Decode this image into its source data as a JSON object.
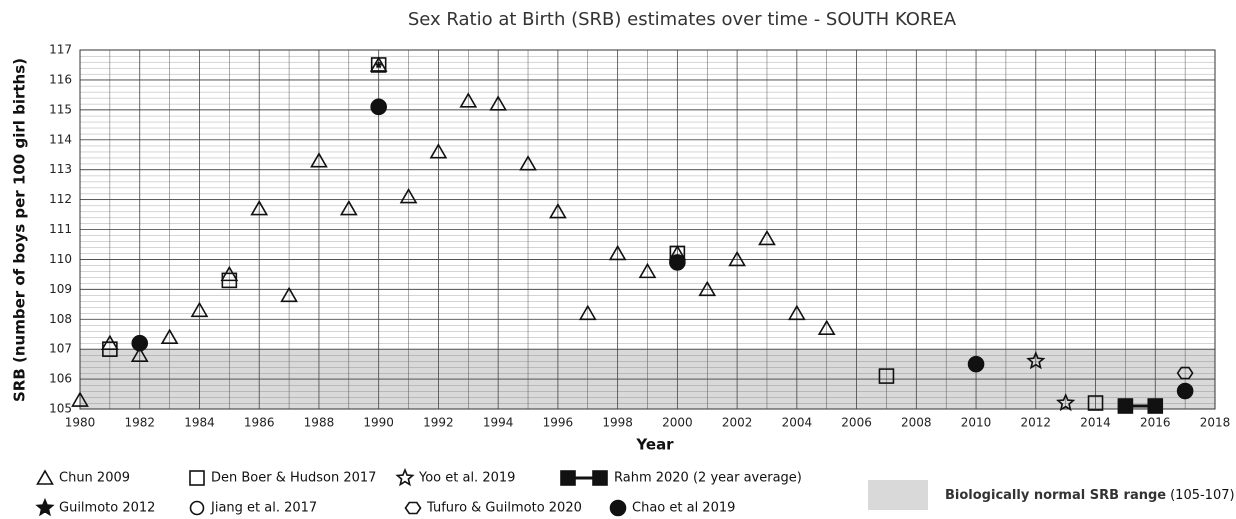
{
  "chart_data": {
    "type": "scatter",
    "title": "Sex Ratio at Birth (SRB) estimates over time - SOUTH KOREA",
    "xlabel": "Year",
    "ylabel": "SRB (number of boys per 100 girl births)",
    "xlim": [
      1980,
      2018
    ],
    "xticks": [
      1980,
      1982,
      1984,
      1986,
      1988,
      1990,
      1992,
      1994,
      1996,
      1998,
      2000,
      2002,
      2004,
      2006,
      2008,
      2010,
      2012,
      2014,
      2016,
      2018
    ],
    "ylim": [
      105,
      117
    ],
    "yticks": [
      105,
      106,
      107,
      108,
      109,
      110,
      111,
      112,
      113,
      114,
      115,
      116,
      117
    ],
    "grid": true,
    "band": [
      105,
      107
    ],
    "band_color": "#d9d9d9",
    "band_label": "Biologically normal SRB range",
    "band_note": "(105-107)",
    "series": [
      {
        "name": "Chun 2009",
        "marker": "triangle",
        "color": "#111111",
        "x": [
          1980,
          1981,
          1982,
          1983,
          1984,
          1985,
          1986,
          1987,
          1988,
          1989,
          1990,
          1991,
          1992,
          1993,
          1994,
          1995,
          1996,
          1997,
          1998,
          1999,
          2000,
          2001,
          2002,
          2003,
          2004,
          2005
        ],
        "values": [
          105.3,
          107.2,
          106.8,
          107.4,
          108.3,
          109.5,
          111.7,
          108.8,
          113.3,
          111.7,
          116.5,
          112.1,
          113.6,
          115.3,
          115.2,
          113.2,
          111.6,
          108.2,
          110.2,
          109.6,
          110.2,
          109.0,
          110.0,
          110.7,
          108.2,
          107.7
        ]
      },
      {
        "name": "Den Boer & Hudson 2017",
        "marker": "square",
        "color": "#111111",
        "x": [
          1981,
          1985,
          1990,
          2000,
          2007,
          2014
        ],
        "values": [
          107.0,
          109.3,
          116.5,
          110.2,
          106.1,
          105.2
        ]
      },
      {
        "name": "Yoo et al. 2019",
        "marker": "star-open",
        "color": "#111111",
        "x": [
          2012,
          2013
        ],
        "values": [
          106.6,
          105.2
        ]
      },
      {
        "name": "Rahm 2020 (2 year average)",
        "marker": "square-line",
        "color": "#111111",
        "x": [
          2015,
          2016
        ],
        "values": [
          105.1,
          105.1
        ]
      },
      {
        "name": "Guilmoto 2012",
        "marker": "star",
        "color": "#111111",
        "x": [
          1990
        ],
        "values": [
          116.5
        ]
      },
      {
        "name": "Jiang et al. 2017",
        "marker": "circle-open",
        "color": "#111111",
        "x": [
          1990
        ],
        "values": [
          116.5
        ]
      },
      {
        "name": "Tufuro & Guilmoto 2020",
        "marker": "hexagon",
        "color": "#111111",
        "x": [
          2017
        ],
        "values": [
          106.2
        ]
      },
      {
        "name": "Chao et al 2019",
        "marker": "circle",
        "color": "#111111",
        "x": [
          1982,
          1990,
          2000,
          2010,
          2017
        ],
        "values": [
          107.2,
          115.1,
          109.9,
          106.5,
          105.6
        ]
      }
    ]
  }
}
